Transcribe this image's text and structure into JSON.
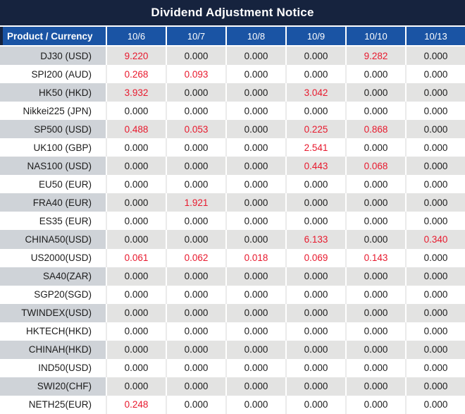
{
  "title": "Dividend Adjustment Notice",
  "table": {
    "product_header": "Product / Currency",
    "date_headers": [
      "10/6",
      "10/7",
      "10/8",
      "10/9",
      "10/10",
      "10/13"
    ],
    "rows": [
      {
        "product": "DJ30 (USD)",
        "values": [
          "9.220",
          "0.000",
          "0.000",
          "0.000",
          "9.282",
          "0.000"
        ],
        "red": [
          1,
          0,
          0,
          0,
          1,
          0
        ]
      },
      {
        "product": "SPI200 (AUD)",
        "values": [
          "0.268",
          "0.093",
          "0.000",
          "0.000",
          "0.000",
          "0.000"
        ],
        "red": [
          1,
          1,
          0,
          0,
          0,
          0
        ]
      },
      {
        "product": "HK50 (HKD)",
        "values": [
          "3.932",
          "0.000",
          "0.000",
          "3.042",
          "0.000",
          "0.000"
        ],
        "red": [
          1,
          0,
          0,
          1,
          0,
          0
        ]
      },
      {
        "product": "Nikkei225 (JPN)",
        "values": [
          "0.000",
          "0.000",
          "0.000",
          "0.000",
          "0.000",
          "0.000"
        ],
        "red": [
          0,
          0,
          0,
          0,
          0,
          0
        ]
      },
      {
        "product": "SP500 (USD)",
        "values": [
          "0.488",
          "0.053",
          "0.000",
          "0.225",
          "0.868",
          "0.000"
        ],
        "red": [
          1,
          1,
          0,
          1,
          1,
          0
        ]
      },
      {
        "product": "UK100 (GBP)",
        "values": [
          "0.000",
          "0.000",
          "0.000",
          "2.541",
          "0.000",
          "0.000"
        ],
        "red": [
          0,
          0,
          0,
          1,
          0,
          0
        ]
      },
      {
        "product": "NAS100 (USD)",
        "values": [
          "0.000",
          "0.000",
          "0.000",
          "0.443",
          "0.068",
          "0.000"
        ],
        "red": [
          0,
          0,
          0,
          1,
          1,
          0
        ]
      },
      {
        "product": "EU50 (EUR)",
        "values": [
          "0.000",
          "0.000",
          "0.000",
          "0.000",
          "0.000",
          "0.000"
        ],
        "red": [
          0,
          0,
          0,
          0,
          0,
          0
        ]
      },
      {
        "product": "FRA40 (EUR)",
        "values": [
          "0.000",
          "1.921",
          "0.000",
          "0.000",
          "0.000",
          "0.000"
        ],
        "red": [
          0,
          1,
          0,
          0,
          0,
          0
        ]
      },
      {
        "product": "ES35 (EUR)",
        "values": [
          "0.000",
          "0.000",
          "0.000",
          "0.000",
          "0.000",
          "0.000"
        ],
        "red": [
          0,
          0,
          0,
          0,
          0,
          0
        ]
      },
      {
        "product": "CHINA50(USD)",
        "values": [
          "0.000",
          "0.000",
          "0.000",
          "6.133",
          "0.000",
          "0.340"
        ],
        "red": [
          0,
          0,
          0,
          1,
          0,
          1
        ]
      },
      {
        "product": "US2000(USD)",
        "values": [
          "0.061",
          "0.062",
          "0.018",
          "0.069",
          "0.143",
          "0.000"
        ],
        "red": [
          1,
          1,
          1,
          1,
          1,
          0
        ]
      },
      {
        "product": "SA40(ZAR)",
        "values": [
          "0.000",
          "0.000",
          "0.000",
          "0.000",
          "0.000",
          "0.000"
        ],
        "red": [
          0,
          0,
          0,
          0,
          0,
          0
        ]
      },
      {
        "product": "SGP20(SGD)",
        "values": [
          "0.000",
          "0.000",
          "0.000",
          "0.000",
          "0.000",
          "0.000"
        ],
        "red": [
          0,
          0,
          0,
          0,
          0,
          0
        ]
      },
      {
        "product": "TWINDEX(USD)",
        "values": [
          "0.000",
          "0.000",
          "0.000",
          "0.000",
          "0.000",
          "0.000"
        ],
        "red": [
          0,
          0,
          0,
          0,
          0,
          0
        ]
      },
      {
        "product": "HKTECH(HKD)",
        "values": [
          "0.000",
          "0.000",
          "0.000",
          "0.000",
          "0.000",
          "0.000"
        ],
        "red": [
          0,
          0,
          0,
          0,
          0,
          0
        ]
      },
      {
        "product": "CHINAH(HKD)",
        "values": [
          "0.000",
          "0.000",
          "0.000",
          "0.000",
          "0.000",
          "0.000"
        ],
        "red": [
          0,
          0,
          0,
          0,
          0,
          0
        ]
      },
      {
        "product": "IND50(USD)",
        "values": [
          "0.000",
          "0.000",
          "0.000",
          "0.000",
          "0.000",
          "0.000"
        ],
        "red": [
          0,
          0,
          0,
          0,
          0,
          0
        ]
      },
      {
        "product": "SWI20(CHF)",
        "values": [
          "0.000",
          "0.000",
          "0.000",
          "0.000",
          "0.000",
          "0.000"
        ],
        "red": [
          0,
          0,
          0,
          0,
          0,
          0
        ]
      },
      {
        "product": "NETH25(EUR)",
        "values": [
          "0.248",
          "0.000",
          "0.000",
          "0.000",
          "0.000",
          "0.000"
        ],
        "red": [
          1,
          0,
          0,
          0,
          0,
          0
        ]
      }
    ]
  },
  "colors": {
    "title_bg": "#16233e",
    "header_bg": "#1a54a4",
    "row_gray_product": "#cfd3d8",
    "row_gray_value": "#e3e3e2",
    "value_red": "#e8192d",
    "value_black": "#1c1c1c",
    "divider_white": "#ffffff",
    "divider_light": "#ebebeb"
  }
}
